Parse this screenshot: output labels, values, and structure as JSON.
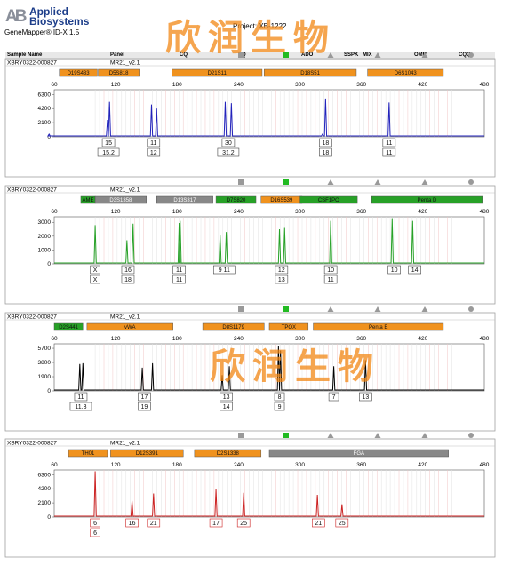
{
  "header": {
    "logo_mark": "AB",
    "logo_line1": "Applied",
    "logo_line2": "Biosystems",
    "app_name": "GeneMapper® ID-X  1.5",
    "project": "Project: XB-1222",
    "columns": [
      "Sample Name",
      "Panel",
      "CQ",
      "SQ",
      "ADO",
      "SSPK",
      "MIX",
      "OMR",
      "CQQ"
    ]
  },
  "watermark": "欣润生物",
  "status_colors": {
    "ok": "#22bb22",
    "warn": "#999999",
    "marker_default": "#f0921e",
    "marker_green": "#27a127",
    "marker_gray": "#888888"
  },
  "panels": [
    {
      "sample": "XBRY0322-000827",
      "panel_name": "MR21_v2.1",
      "color": "#2222bb",
      "y_ticks": [
        "6300",
        "4200",
        "2100",
        "0"
      ],
      "y_max": 7000,
      "x_ticks": [
        "60",
        "120",
        "180",
        "240",
        "300",
        "360",
        "420",
        "480"
      ],
      "markers": [
        {
          "name": "D19S433",
          "color": "orange",
          "from": 65,
          "to": 102
        },
        {
          "name": "D5S818",
          "color": "orange",
          "from": 103,
          "to": 143
        },
        {
          "name": "D21S11",
          "color": "orange",
          "from": 175,
          "to": 263
        },
        {
          "name": "D18S51",
          "color": "orange",
          "from": 265,
          "to": 355
        },
        {
          "name": "D6S1043",
          "color": "orange",
          "from": 366,
          "to": 440
        }
      ],
      "peaks": [
        {
          "bp": 112,
          "h": 2500
        },
        {
          "bp": 114,
          "h": 5200
        },
        {
          "bp": 155,
          "h": 4800
        },
        {
          "bp": 160,
          "h": 4200
        },
        {
          "bp": 227,
          "h": 5200
        },
        {
          "bp": 233,
          "h": 5000
        },
        {
          "bp": 325,
          "h": 5700
        },
        {
          "bp": 387,
          "h": 5100
        },
        {
          "bp": 55,
          "h": 400
        },
        {
          "bp": 322,
          "h": 400
        }
      ],
      "alleles": [
        {
          "bp": 113,
          "row1": "15",
          "row2": "15.2"
        },
        {
          "bp": 157,
          "row1": "11",
          "row2": "12"
        },
        {
          "bp": 230,
          "row1": "30",
          "row2": "31.2"
        },
        {
          "bp": 325,
          "row1": "18",
          "row2": "18"
        },
        {
          "bp": 387,
          "row1": "11",
          "row2": "11"
        }
      ]
    },
    {
      "sample": "XBRY0322-000827",
      "panel_name": "MR21_v2.1",
      "color": "#27a127",
      "y_ticks": [
        "3000",
        "2000",
        "1000",
        "0"
      ],
      "y_max": 3400,
      "x_ticks": [
        "60",
        "120",
        "180",
        "240",
        "300",
        "360",
        "420",
        "480"
      ],
      "markers": [
        {
          "name": "AME",
          "color": "green",
          "from": 86,
          "to": 100
        },
        {
          "name": "D3S1358",
          "color": "gray",
          "from": 100,
          "to": 150
        },
        {
          "name": "D13S317",
          "color": "gray",
          "from": 160,
          "to": 215
        },
        {
          "name": "D7S820",
          "color": "green",
          "from": 218,
          "to": 257
        },
        {
          "name": "D16S539",
          "color": "orange",
          "from": 262,
          "to": 302
        },
        {
          "name": "CSF1PO",
          "color": "green",
          "from": 300,
          "to": 356
        },
        {
          "name": "Penta D",
          "color": "green",
          "from": 370,
          "to": 478
        }
      ],
      "peaks": [
        {
          "bp": 100,
          "h": 2800
        },
        {
          "bp": 131,
          "h": 1700
        },
        {
          "bp": 137,
          "h": 2900
        },
        {
          "bp": 182,
          "h": 2950
        },
        {
          "bp": 222,
          "h": 2100
        },
        {
          "bp": 228,
          "h": 2300
        },
        {
          "bp": 280,
          "h": 2500
        },
        {
          "bp": 285,
          "h": 2600
        },
        {
          "bp": 330,
          "h": 3100
        },
        {
          "bp": 390,
          "h": 3300
        },
        {
          "bp": 410,
          "h": 3100
        },
        {
          "bp": 183,
          "h": 3100
        }
      ],
      "alleles": [
        {
          "bp": 100,
          "row1": "X",
          "row2": "X"
        },
        {
          "bp": 132,
          "row1": "16",
          "row2": "18"
        },
        {
          "bp": 182,
          "row1": "11",
          "row2": "11"
        },
        {
          "bp": 226,
          "row1": "9 11",
          "row2": ""
        },
        {
          "bp": 282,
          "row1": "12",
          "row2": "13"
        },
        {
          "bp": 330,
          "row1": "10",
          "row2": "11"
        },
        {
          "bp": 392,
          "row1": "10",
          "row2": ""
        },
        {
          "bp": 412,
          "row1": "14",
          "row2": ""
        }
      ]
    },
    {
      "sample": "XBRY0322-000827",
      "panel_name": "MR21_v2.1",
      "color": "#000000",
      "y_ticks": [
        "5700",
        "3800",
        "1900",
        "0"
      ],
      "y_max": 6300,
      "x_ticks": [
        "60",
        "120",
        "180",
        "240",
        "300",
        "360",
        "420",
        "480"
      ],
      "markers": [
        {
          "name": "D2S441",
          "color": "green",
          "from": 60,
          "to": 88
        },
        {
          "name": "vWA",
          "color": "orange",
          "from": 92,
          "to": 176
        },
        {
          "name": "D8S1179",
          "color": "orange",
          "from": 205,
          "to": 265
        },
        {
          "name": "TPOX",
          "color": "orange",
          "from": 270,
          "to": 308
        },
        {
          "name": "Penta E",
          "color": "orange",
          "from": 313,
          "to": 440
        }
      ],
      "peaks": [
        {
          "bp": 85,
          "h": 3600
        },
        {
          "bp": 88,
          "h": 3700
        },
        {
          "bp": 146,
          "h": 3100
        },
        {
          "bp": 156,
          "h": 3700
        },
        {
          "bp": 224,
          "h": 2100
        },
        {
          "bp": 231,
          "h": 3300
        },
        {
          "bp": 279,
          "h": 6000
        },
        {
          "bp": 281,
          "h": 5400
        },
        {
          "bp": 333,
          "h": 3300
        },
        {
          "bp": 364,
          "h": 4100
        }
      ],
      "alleles": [
        {
          "bp": 86,
          "row1": "11",
          "row2": "11.3"
        },
        {
          "bp": 148,
          "row1": "17",
          "row2": "19"
        },
        {
          "bp": 228,
          "row1": "13",
          "row2": "14"
        },
        {
          "bp": 280,
          "row1": "8",
          "row2": "9"
        },
        {
          "bp": 333,
          "row1": "7",
          "row2": ""
        },
        {
          "bp": 364,
          "row1": "13",
          "row2": ""
        }
      ]
    },
    {
      "sample": "XBRY0322-000827",
      "panel_name": "MR21_v2.1",
      "color": "#cc2222",
      "y_ticks": [
        "6300",
        "4200",
        "2100",
        "0"
      ],
      "y_max": 7000,
      "x_ticks": [
        "60",
        "120",
        "180",
        "240",
        "300",
        "360",
        "420",
        "480"
      ],
      "markers": [
        {
          "name": "TH01",
          "color": "orange",
          "from": 74,
          "to": 112
        },
        {
          "name": "D12S391",
          "color": "orange",
          "from": 115,
          "to": 186
        },
        {
          "name": "D2S1338",
          "color": "orange",
          "from": 197,
          "to": 262
        },
        {
          "name": "FGA",
          "color": "gray",
          "from": 270,
          "to": 445
        }
      ],
      "peaks": [
        {
          "bp": 100,
          "h": 6800
        },
        {
          "bp": 136,
          "h": 2400
        },
        {
          "bp": 157,
          "h": 3500
        },
        {
          "bp": 218,
          "h": 4100
        },
        {
          "bp": 245,
          "h": 3600
        },
        {
          "bp": 317,
          "h": 3300
        },
        {
          "bp": 341,
          "h": 1900
        }
      ],
      "alleles": [
        {
          "bp": 100,
          "row1": "6",
          "row2": "6"
        },
        {
          "bp": 136,
          "row1": "16",
          "row2": ""
        },
        {
          "bp": 157,
          "row1": "21",
          "row2": ""
        },
        {
          "bp": 218,
          "row1": "17",
          "row2": ""
        },
        {
          "bp": 245,
          "row1": "25",
          "row2": ""
        },
        {
          "bp": 318,
          "row1": "21",
          "row2": ""
        },
        {
          "bp": 341,
          "row1": "25",
          "row2": ""
        }
      ]
    }
  ]
}
